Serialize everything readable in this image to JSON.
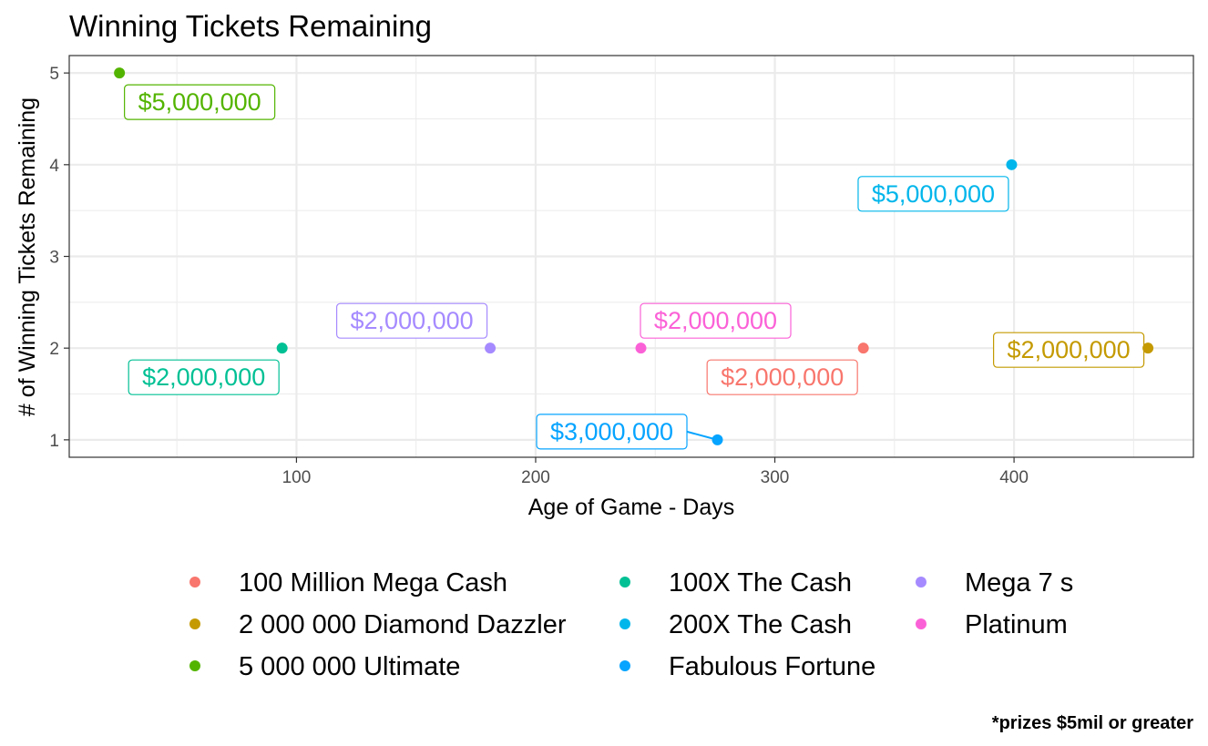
{
  "chart_data": {
    "type": "scatter",
    "title": "Winning Tickets Remaining",
    "xlabel": "Age of Game - Days",
    "ylabel": "# of Winning Tickets Remaining",
    "xlim": [
      5,
      475
    ],
    "ylim": [
      0.81,
      5.19
    ],
    "xticks": [
      100,
      200,
      300,
      400
    ],
    "yticks": [
      1,
      2,
      3,
      4,
      5
    ],
    "xminor": [
      50,
      150,
      250,
      350,
      450
    ],
    "yminor": [
      1.5,
      2.5,
      3.5,
      4.5
    ],
    "grid": true,
    "legend_position": "bottom",
    "caption": "*prizes $5mil or greater",
    "series": [
      {
        "name": "100 Million Mega Cash",
        "color": "#F8766D",
        "x": 337,
        "y": 2,
        "label": "$2,000,000"
      },
      {
        "name": "2 000 000 Diamond Dazzler",
        "color": "#C49A00",
        "x": 456,
        "y": 2,
        "label": "$2,000,000"
      },
      {
        "name": "5 000 000 Ultimate",
        "color": "#53B400",
        "x": 26,
        "y": 5,
        "label": "$5,000,000"
      },
      {
        "name": "100X The Cash",
        "color": "#00C094",
        "x": 94,
        "y": 2,
        "label": "$2,000,000"
      },
      {
        "name": "200X The Cash",
        "color": "#00B6EB",
        "x": 399,
        "y": 4,
        "label": "$5,000,000"
      },
      {
        "name": "Fabulous Fortune",
        "color": "#06A4FF",
        "x": 276,
        "y": 1,
        "label": "$3,000,000"
      },
      {
        "name": "Mega 7   s",
        "color": "#A58AFF",
        "x": 181,
        "y": 2,
        "label": "$2,000,000"
      },
      {
        "name": "Platinum",
        "color": "#FB61D7",
        "x": 244,
        "y": 2,
        "label": "$2,000,000"
      }
    ]
  }
}
